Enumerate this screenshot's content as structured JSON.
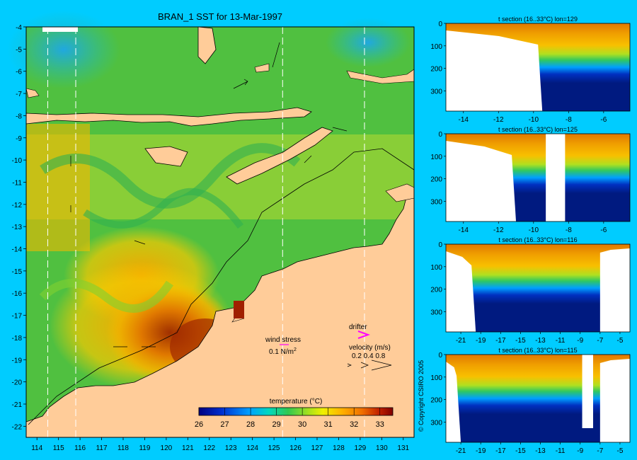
{
  "chart_data": [
    {
      "type": "heatmap",
      "title": "BRAN_1 SST for 13-Mar-1997",
      "x_ticks": [
        114,
        115,
        116,
        117,
        118,
        119,
        120,
        121,
        122,
        123,
        124,
        125,
        126,
        127,
        128,
        129,
        130,
        131
      ],
      "y_ticks": [
        -4,
        -5,
        -6,
        -7,
        -8,
        -9,
        -10,
        -11,
        -12,
        -13,
        -14,
        -15,
        -16,
        -17,
        -18,
        -19,
        -20,
        -21,
        -22
      ],
      "xlim": [
        113.5,
        131.5
      ],
      "ylim": [
        -22.5,
        -4
      ],
      "colorbar": {
        "label": "temperature (°C)",
        "ticks": [
          26,
          27,
          28,
          29,
          30,
          31,
          32,
          33
        ],
        "range": [
          26,
          33.5
        ]
      },
      "annotations": {
        "wind_stress_label": "wind stress",
        "wind_stress_value": "0.1 N/m",
        "wind_stress_sup": "2",
        "drifter_label": "drifter",
        "velocity_label": "velocity (m/s)",
        "velocity_values": "0.2 0.4 0.8"
      },
      "section_lines_lon": [
        114.5,
        115.8,
        125.4,
        129.2
      ]
    },
    {
      "type": "heatmap",
      "title": "t section (16..33°C) lon=129",
      "x_ticks": [
        -14,
        -12,
        -10,
        -8,
        -6
      ],
      "y_ticks": [
        0,
        100,
        200,
        300
      ],
      "xlim": [
        -15,
        -4.5
      ],
      "ylim": [
        390,
        0
      ]
    },
    {
      "type": "heatmap",
      "title": "t section (16..33°C) lon=125",
      "x_ticks": [
        -14,
        -12,
        -10,
        -8,
        -6
      ],
      "y_ticks": [
        0,
        100,
        200,
        300
      ],
      "xlim": [
        -15,
        -4.5
      ],
      "ylim": [
        390,
        0
      ]
    },
    {
      "type": "heatmap",
      "title": "t section (16..33°C) lon=116",
      "x_ticks": [
        -21,
        -19,
        -17,
        -15,
        -13,
        -11,
        -9,
        -7,
        -5
      ],
      "y_ticks": [
        0,
        100,
        200,
        300
      ],
      "xlim": [
        -22.5,
        -4
      ],
      "ylim": [
        390,
        0
      ]
    },
    {
      "type": "heatmap",
      "title": "t section (16..33°C) lon=115",
      "x_ticks": [
        -21,
        -19,
        -17,
        -15,
        -13,
        -11,
        -9,
        -7,
        -5
      ],
      "y_ticks": [
        0,
        100,
        200,
        300
      ],
      "xlim": [
        -22.5,
        -4
      ],
      "ylim": [
        390,
        0
      ]
    }
  ],
  "copyright": "© Copyright CSIRO 2005",
  "colors": {
    "background": "#00ccff",
    "land": "#ffcc99",
    "ocean_green": "#44cc55",
    "warm_orange": "#ee9900",
    "deep_navy": "#001a80",
    "drifter_magenta": "#ff00ff"
  }
}
